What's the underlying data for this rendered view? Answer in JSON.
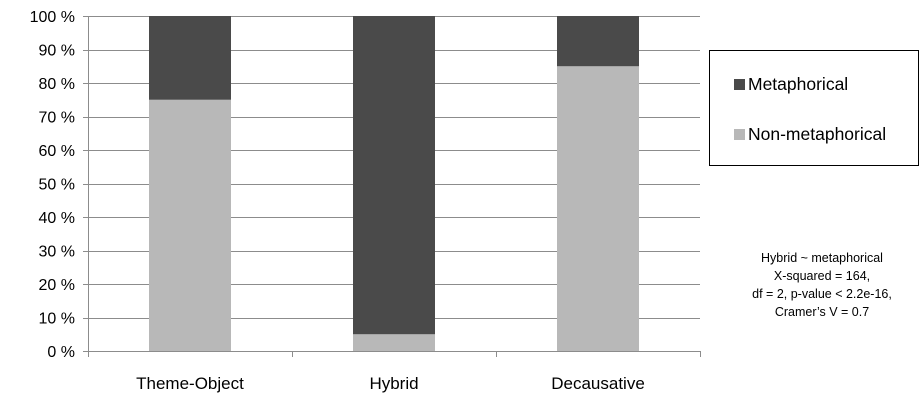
{
  "chart_data": {
    "type": "bar",
    "stacked": true,
    "percent_stacked": true,
    "categories": [
      "Theme-Object",
      "Hybrid",
      "Decausative"
    ],
    "series": [
      {
        "name": "Non-metaphorical",
        "values": [
          75,
          5,
          85
        ],
        "color": "#b8b8b8"
      },
      {
        "name": "Metaphorical",
        "values": [
          25,
          95,
          15
        ],
        "color": "#4a4a4a"
      }
    ],
    "ylim": [
      0,
      100
    ],
    "yticks": [
      "0 %",
      "10 %",
      "20 %",
      "30 %",
      "40 %",
      "50 %",
      "60 %",
      "70 %",
      "80 %",
      "90 %",
      "100 %"
    ],
    "ytick_values": [
      0,
      10,
      20,
      30,
      40,
      50,
      60,
      70,
      80,
      90,
      100
    ],
    "grid": true,
    "legend_position": "right",
    "title": "",
    "xlabel": "",
    "ylabel": ""
  },
  "legend": {
    "items": [
      {
        "label": "Metaphorical",
        "color": "#4a4a4a"
      },
      {
        "label": "Non-metaphorical",
        "color": "#b8b8b8"
      }
    ]
  },
  "annotation": {
    "lines": [
      "Hybrid ~ metaphorical",
      "X-squared = 164,",
      "df = 2, p-value < 2.2e-16,",
      "Cramer’s V = 0.7"
    ]
  },
  "colors": {
    "grid": "#8c8c8c",
    "axis": "#8c8c8c"
  }
}
